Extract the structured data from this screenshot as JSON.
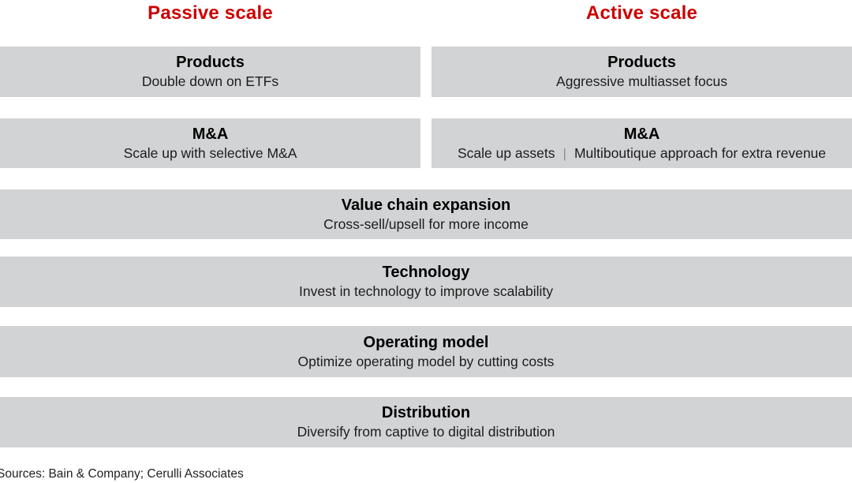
{
  "colors": {
    "accent_red": "#cc0000",
    "box_gray": "#d2d3d5",
    "heading_text": "#000000",
    "subtitle_text": "#1c1c1c",
    "separator_gray": "#8c8c8c"
  },
  "columns": [
    {
      "title": "Passive scale",
      "boxes": [
        {
          "heading": "Products",
          "subtitle": "Double down on ETFs"
        },
        {
          "heading": "M&A",
          "subtitle": "Scale up with selective M&A"
        }
      ]
    },
    {
      "title": "Active scale",
      "boxes": [
        {
          "heading": "Products",
          "subtitle": "Aggressive multiasset focus"
        },
        {
          "heading": "M&A",
          "subtitle_parts": [
            "Scale up assets",
            "Multiboutique approach for extra revenue"
          ],
          "separator": "|"
        }
      ]
    }
  ],
  "shared_rows": [
    {
      "heading": "Value chain expansion",
      "subtitle": "Cross-sell/upsell for more income"
    },
    {
      "heading": "Technology",
      "subtitle": "Invest in technology to improve scalability"
    },
    {
      "heading": "Operating model",
      "subtitle": "Optimize operating model by cutting costs"
    },
    {
      "heading": "Distribution",
      "subtitle": "Diversify from captive to digital distribution"
    }
  ],
  "footer": {
    "sources": "Sources: Bain & Company; Cerulli Associates"
  }
}
